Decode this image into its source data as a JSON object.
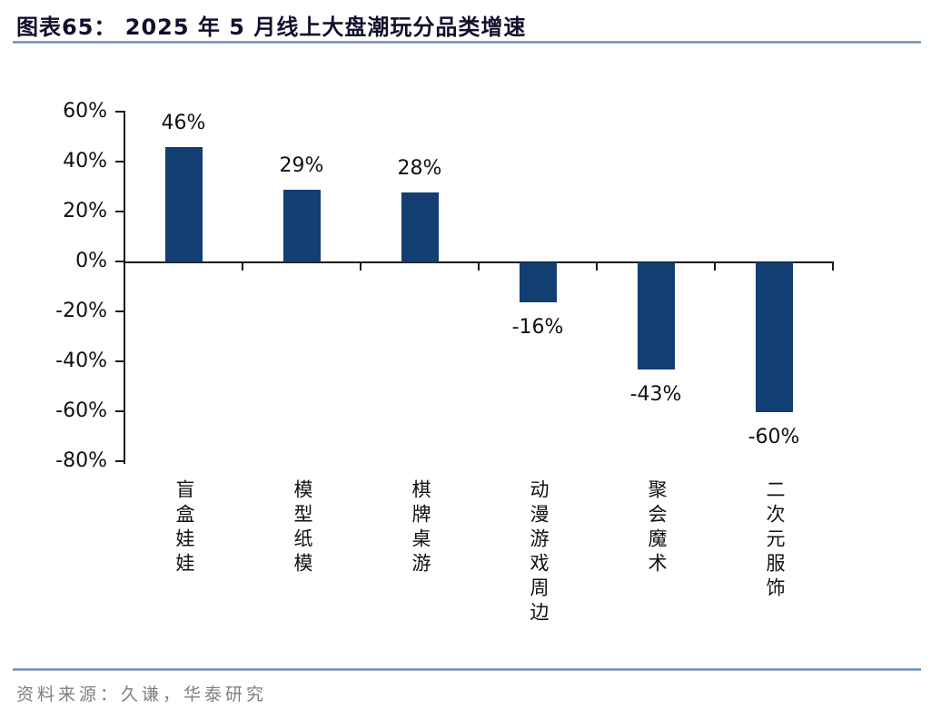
{
  "title": "图表65： 2025 年 5 月线上大盘潮玩分品类增速",
  "source": "资料来源：久谦，华泰研究",
  "colors": {
    "bar": "#123e71",
    "axis": "#1a1a1a",
    "divider_blue": "#5c80ac",
    "title_text": "#10102c",
    "source_text": "#7f7f7f"
  },
  "chart_data": {
    "type": "bar",
    "title": "2025 年 5 月线上大盘潮玩分品类增速",
    "categories": [
      "盲盒娃娃",
      "模型纸模",
      "棋牌桌游",
      "动漫游戏周边",
      "聚会魔术",
      "二次元服饰"
    ],
    "values": [
      46,
      29,
      28,
      -16,
      -43,
      -60
    ],
    "labels": [
      "46%",
      "29%",
      "28%",
      "-16%",
      "-43%",
      "-60%"
    ],
    "y_ticks": [
      "60%",
      "40%",
      "20%",
      "0%",
      "-20%",
      "-40%",
      "-60%",
      "-80%"
    ],
    "ylim": [
      -80,
      60
    ],
    "xlabel": "",
    "ylabel": "",
    "grid": false,
    "legend": null,
    "bar_color": "#123e71",
    "data_label_position": "outside-end"
  }
}
